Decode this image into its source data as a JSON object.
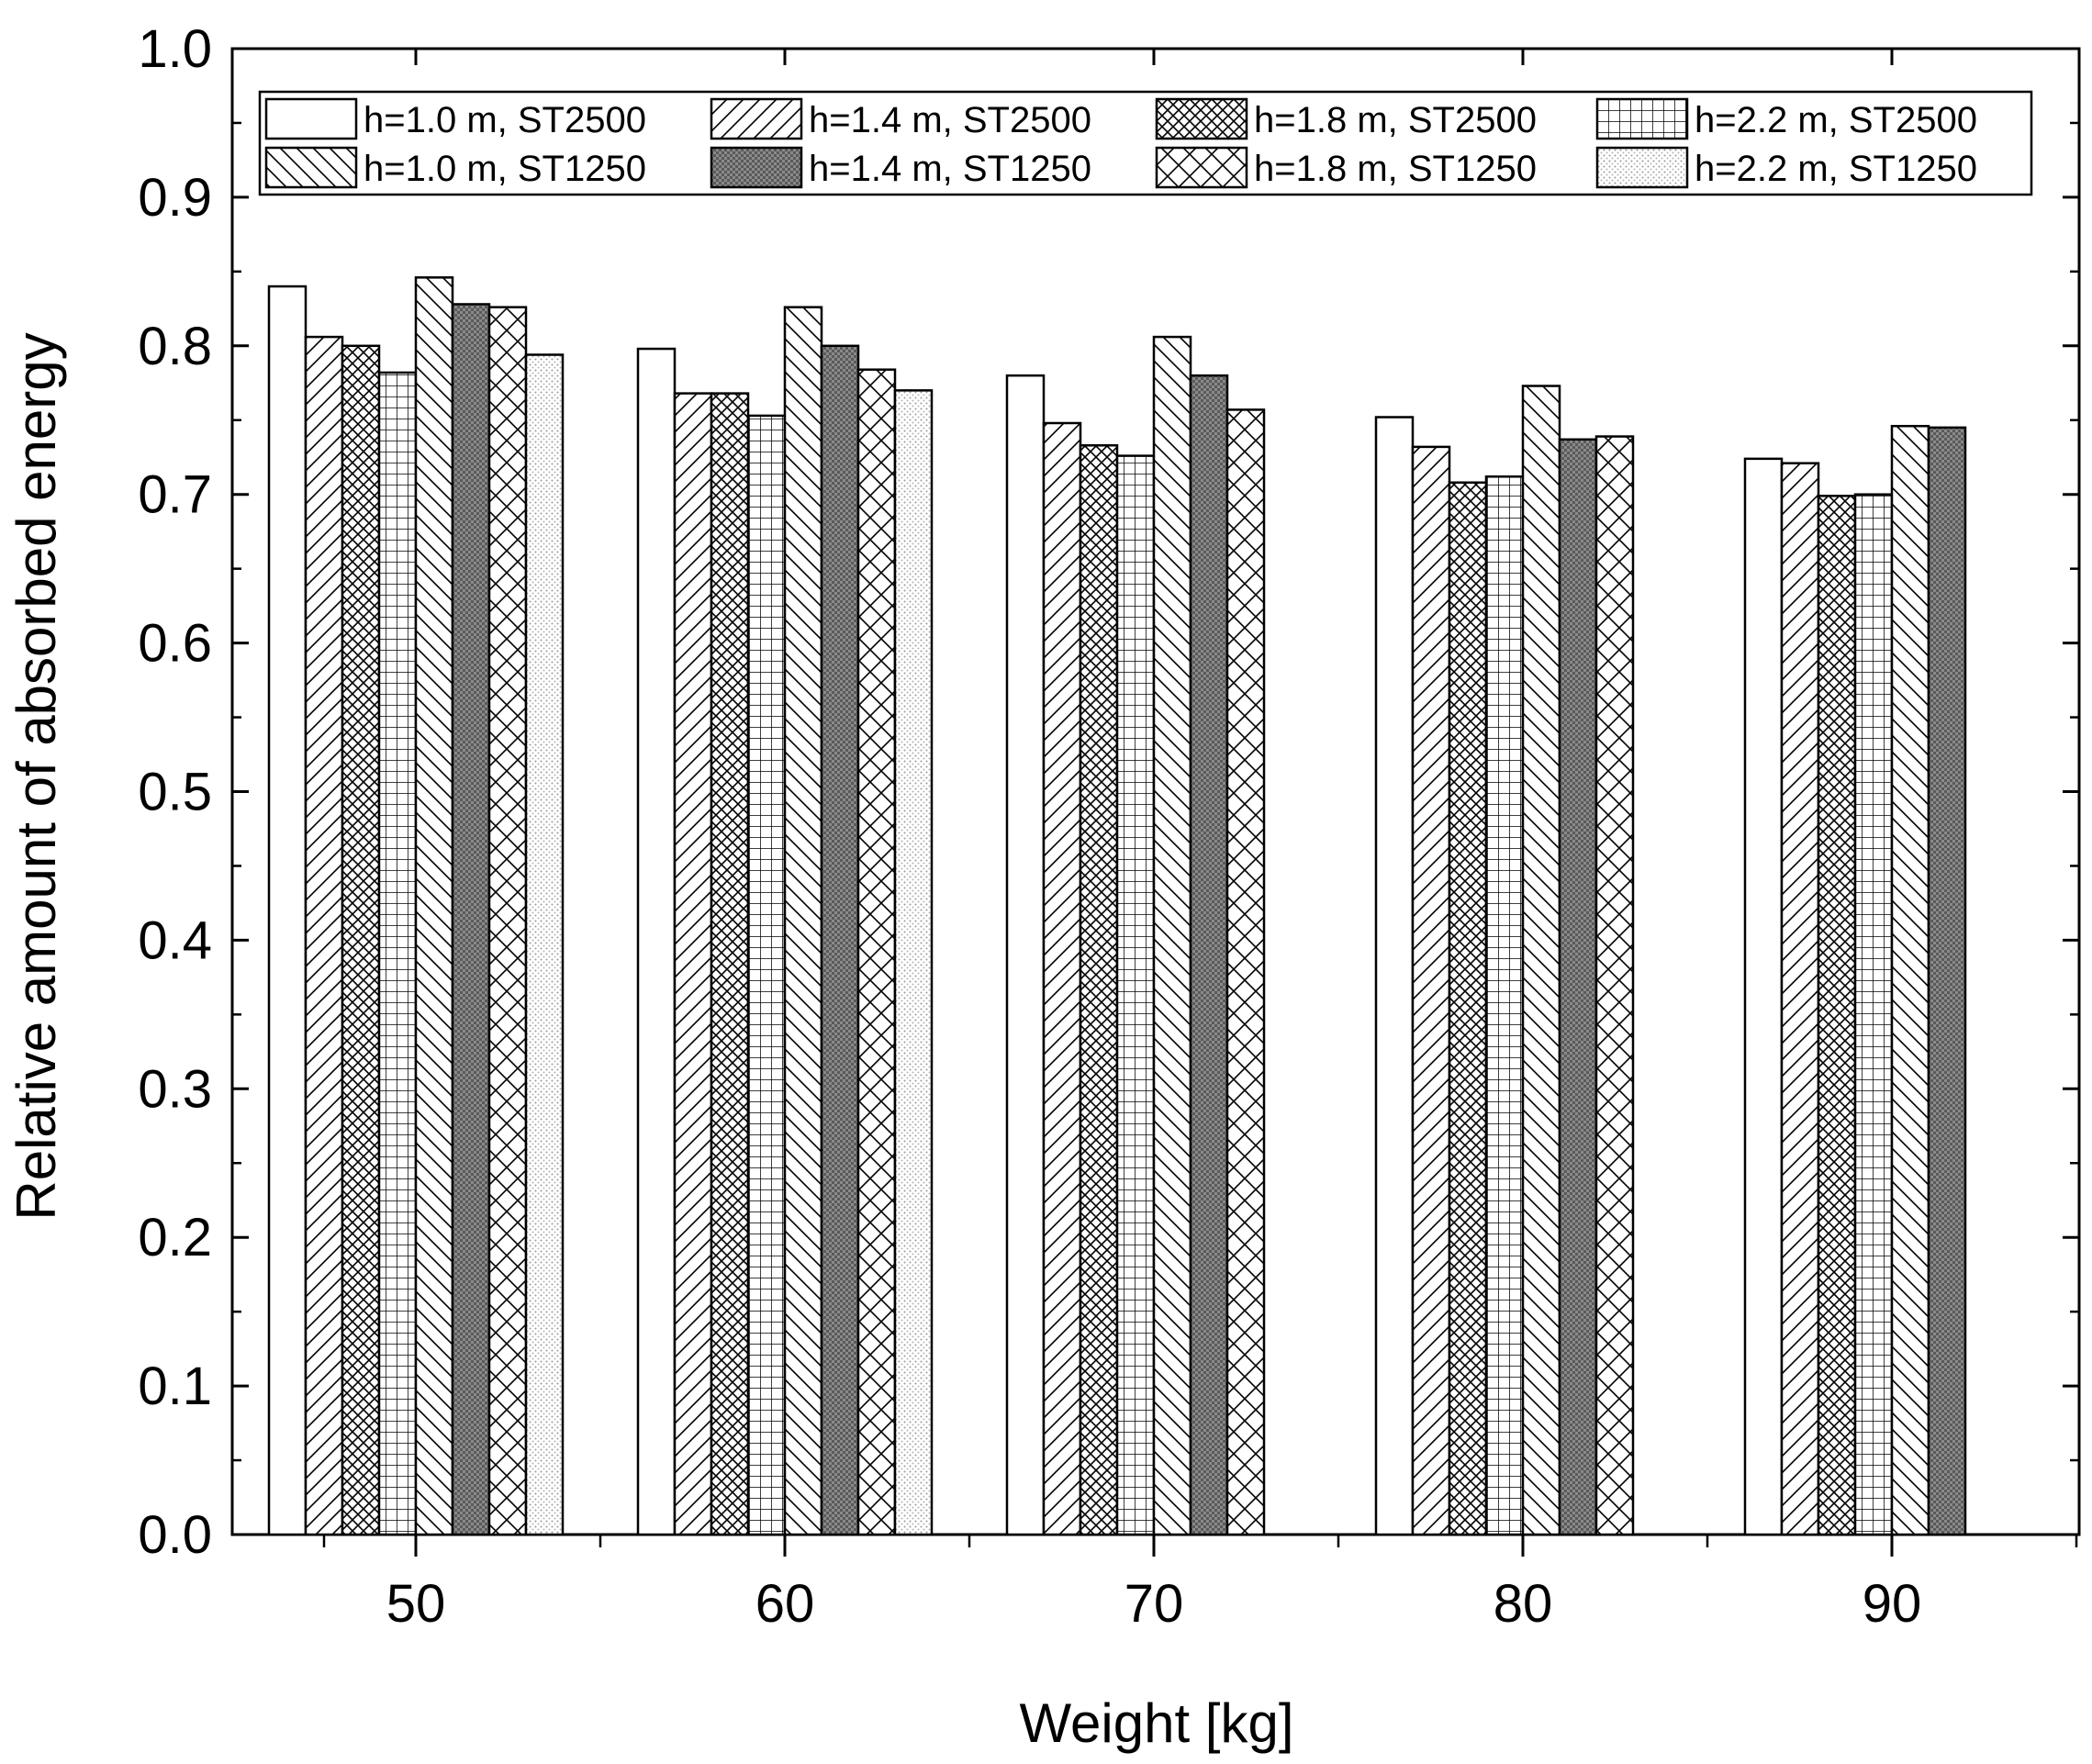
{
  "chart_data": {
    "type": "bar",
    "title": "",
    "xlabel": "Weight [kg]",
    "ylabel": "Relative amount of absorbed energy",
    "ylim": [
      0.0,
      1.0
    ],
    "yticks": [
      "0.0",
      "0.1",
      "0.2",
      "0.3",
      "0.4",
      "0.5",
      "0.6",
      "0.7",
      "0.8",
      "0.9",
      "1.0"
    ],
    "grid": false,
    "legend_position": "top",
    "categories": [
      "50",
      "60",
      "70",
      "80",
      "90"
    ],
    "series": [
      {
        "name": "h=1.0 m, ST2500",
        "pattern": "blank",
        "values": [
          0.84,
          0.798,
          0.78,
          0.752,
          0.724
        ]
      },
      {
        "name": "h=1.4 m, ST2500",
        "pattern": "slash",
        "values": [
          0.806,
          0.768,
          0.748,
          0.732,
          0.721
        ]
      },
      {
        "name": "h=1.8 m, ST2500",
        "pattern": "crosshatch-fine",
        "values": [
          0.8,
          0.768,
          0.733,
          0.708,
          0.699
        ]
      },
      {
        "name": "h=2.2 m, ST2500",
        "pattern": "grid",
        "values": [
          0.782,
          0.753,
          0.726,
          0.712,
          0.7
        ]
      },
      {
        "name": "h=1.0 m, ST1250",
        "pattern": "backslash",
        "values": [
          0.846,
          0.826,
          0.806,
          0.773,
          0.746
        ]
      },
      {
        "name": "h=1.4 m, ST1250",
        "pattern": "dense-gray",
        "values": [
          0.828,
          0.8,
          0.78,
          0.737,
          0.745
        ]
      },
      {
        "name": "h=1.8 m, ST1250",
        "pattern": "crosshatch-wide",
        "values": [
          0.826,
          0.784,
          0.757,
          0.739,
          null
        ]
      },
      {
        "name": "h=2.2 m, ST1250",
        "pattern": "dots",
        "values": [
          0.794,
          0.77,
          null,
          null,
          null
        ]
      }
    ]
  }
}
